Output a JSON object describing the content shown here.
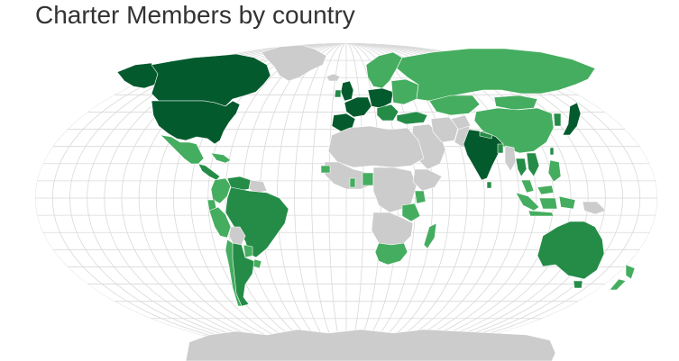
{
  "title": "Charter Members by country",
  "colors": {
    "no_members": "#cccccc",
    "level_1": "#45ad5f",
    "level_2": "#258c48",
    "level_3": "#035a2d",
    "graticule": "#d9d9d9",
    "background": "#ffffff"
  },
  "regions": [
    {
      "name": "Canada",
      "level": 3
    },
    {
      "name": "United States",
      "level": 3
    },
    {
      "name": "Alaska",
      "level": 3
    },
    {
      "name": "Greenland",
      "level": 0
    },
    {
      "name": "Iceland",
      "level": 0
    },
    {
      "name": "Mexico",
      "level": 1
    },
    {
      "name": "Central America",
      "level": 2
    },
    {
      "name": "Caribbean",
      "level": 1
    },
    {
      "name": "Colombia",
      "level": 1
    },
    {
      "name": "Venezuela",
      "level": 2
    },
    {
      "name": "Guyanas",
      "level": 0
    },
    {
      "name": "Ecuador",
      "level": 1
    },
    {
      "name": "Peru",
      "level": 1
    },
    {
      "name": "Brazil",
      "level": 2
    },
    {
      "name": "Bolivia",
      "level": 0
    },
    {
      "name": "Paraguay",
      "level": 1
    },
    {
      "name": "Chile",
      "level": 1
    },
    {
      "name": "Argentina",
      "level": 2
    },
    {
      "name": "Uruguay",
      "level": 1
    },
    {
      "name": "United Kingdom",
      "level": 3
    },
    {
      "name": "Ireland",
      "level": 2
    },
    {
      "name": "Scandinavia",
      "level": 1
    },
    {
      "name": "Western Europe",
      "level": 3
    },
    {
      "name": "Iberia",
      "level": 3
    },
    {
      "name": "Central Europe",
      "level": 3
    },
    {
      "name": "Eastern Europe",
      "level": 1
    },
    {
      "name": "Balkans",
      "level": 2
    },
    {
      "name": "Russia",
      "level": 1
    },
    {
      "name": "Kazakhstan",
      "level": 1
    },
    {
      "name": "Turkey",
      "level": 2
    },
    {
      "name": "Middle East",
      "level": 0
    },
    {
      "name": "Iran",
      "level": 0
    },
    {
      "name": "Afghanistan",
      "level": 0
    },
    {
      "name": "Pakistan",
      "level": 0
    },
    {
      "name": "India",
      "level": 3
    },
    {
      "name": "Sri Lanka",
      "level": 2
    },
    {
      "name": "Nepal",
      "level": 2
    },
    {
      "name": "Bangladesh",
      "level": 2
    },
    {
      "name": "Myanmar",
      "level": 0
    },
    {
      "name": "Thailand",
      "level": 2
    },
    {
      "name": "Indochina",
      "level": 2
    },
    {
      "name": "China",
      "level": 1
    },
    {
      "name": "Mongolia",
      "level": 1
    },
    {
      "name": "Korea",
      "level": 2
    },
    {
      "name": "Japan",
      "level": 3
    },
    {
      "name": "Taiwan",
      "level": 2
    },
    {
      "name": "Philippines",
      "level": 1
    },
    {
      "name": "Malaysia",
      "level": 1
    },
    {
      "name": "Indonesia",
      "level": 1
    },
    {
      "name": "Papua New Guinea",
      "level": 0
    },
    {
      "name": "Australia",
      "level": 2
    },
    {
      "name": "New Zealand",
      "level": 1
    },
    {
      "name": "North Africa",
      "level": 0
    },
    {
      "name": "West Africa",
      "level": 0
    },
    {
      "name": "Senegal",
      "level": 1
    },
    {
      "name": "Ghana",
      "level": 1
    },
    {
      "name": "Nigeria",
      "level": 1
    },
    {
      "name": "Central Africa",
      "level": 0
    },
    {
      "name": "Ethiopia",
      "level": 0
    },
    {
      "name": "Kenya",
      "level": 1
    },
    {
      "name": "Tanzania",
      "level": 1
    },
    {
      "name": "Southern Africa",
      "level": 0
    },
    {
      "name": "South Africa",
      "level": 1
    },
    {
      "name": "Madagascar",
      "level": 1
    },
    {
      "name": "Antarctica",
      "level": 0
    }
  ]
}
